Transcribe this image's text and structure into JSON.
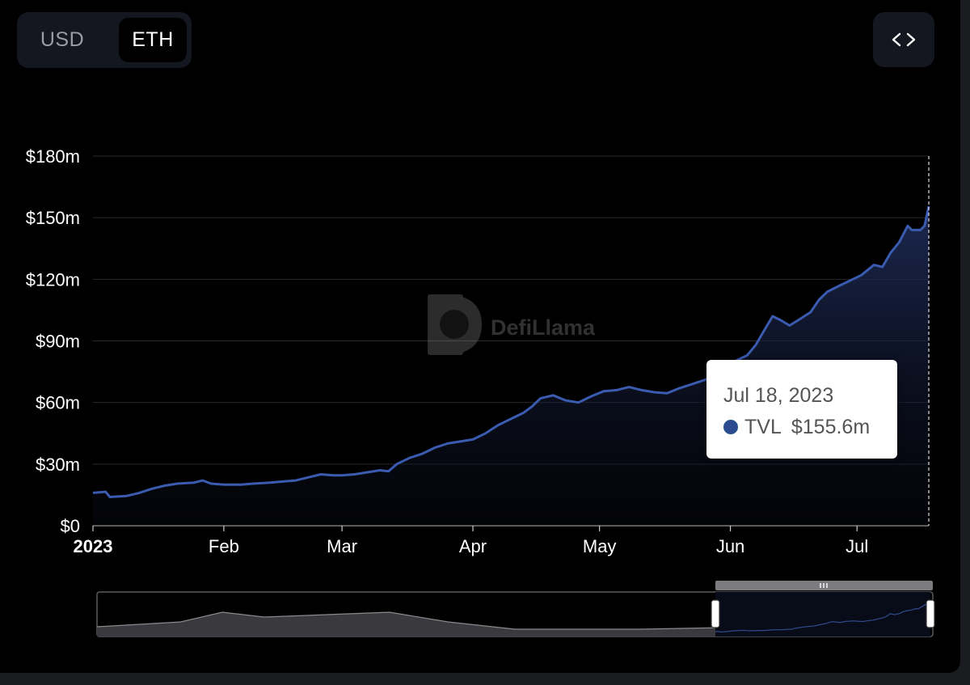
{
  "toggle": {
    "usd_label": "USD",
    "eth_label": "ETH",
    "selected": "ETH"
  },
  "embed_button": {
    "icon": "code-brackets-icon"
  },
  "watermark": {
    "text": "DefiLlama"
  },
  "tooltip": {
    "date": "Jul 18, 2023",
    "series": "TVL",
    "value": "$155.6m"
  },
  "colors": {
    "line": "#3a5bb0",
    "tooltip_dot": "#2c4a8e",
    "background": "#000000"
  },
  "chart_data": {
    "type": "area",
    "title": "",
    "xlabel": "",
    "ylabel": "",
    "ylim": [
      0,
      180
    ],
    "xlim": [
      "2023-01-01",
      "2023-07-18"
    ],
    "y_ticks": [
      {
        "value": 0,
        "label": "$0"
      },
      {
        "value": 30,
        "label": "$30m"
      },
      {
        "value": 60,
        "label": "$60m"
      },
      {
        "value": 90,
        "label": "$90m"
      },
      {
        "value": 120,
        "label": "$120m"
      },
      {
        "value": 150,
        "label": "$150m"
      },
      {
        "value": 180,
        "label": "$180m"
      }
    ],
    "x_ticks": [
      {
        "date": "2023-01-01",
        "label": "2023",
        "bold": true
      },
      {
        "date": "2023-02-01",
        "label": "Feb"
      },
      {
        "date": "2023-03-01",
        "label": "Mar"
      },
      {
        "date": "2023-04-01",
        "label": "Apr"
      },
      {
        "date": "2023-05-01",
        "label": "May"
      },
      {
        "date": "2023-06-01",
        "label": "Jun"
      },
      {
        "date": "2023-07-01",
        "label": "Jul"
      }
    ],
    "grid": true,
    "series": [
      {
        "name": "TVL",
        "unit": "$m",
        "points": [
          [
            "2023-01-01",
            16
          ],
          [
            "2023-01-04",
            16.5
          ],
          [
            "2023-01-05",
            14
          ],
          [
            "2023-01-09",
            14.5
          ],
          [
            "2023-01-12",
            16
          ],
          [
            "2023-01-15",
            18
          ],
          [
            "2023-01-18",
            19.5
          ],
          [
            "2023-01-21",
            20.5
          ],
          [
            "2023-01-25",
            21
          ],
          [
            "2023-01-27",
            22
          ],
          [
            "2023-01-29",
            20.5
          ],
          [
            "2023-02-01",
            20
          ],
          [
            "2023-02-05",
            20
          ],
          [
            "2023-02-08",
            20.5
          ],
          [
            "2023-02-12",
            21
          ],
          [
            "2023-02-15",
            21.5
          ],
          [
            "2023-02-18",
            22
          ],
          [
            "2023-02-21",
            23.5
          ],
          [
            "2023-02-24",
            25
          ],
          [
            "2023-02-27",
            24.5
          ],
          [
            "2023-03-01",
            24.5
          ],
          [
            "2023-03-04",
            25
          ],
          [
            "2023-03-07",
            26
          ],
          [
            "2023-03-10",
            27
          ],
          [
            "2023-03-12",
            26.5
          ],
          [
            "2023-03-14",
            30
          ],
          [
            "2023-03-17",
            33
          ],
          [
            "2023-03-20",
            35
          ],
          [
            "2023-03-23",
            38
          ],
          [
            "2023-03-26",
            40
          ],
          [
            "2023-03-29",
            41
          ],
          [
            "2023-04-01",
            42
          ],
          [
            "2023-04-04",
            45
          ],
          [
            "2023-04-07",
            49
          ],
          [
            "2023-04-10",
            52
          ],
          [
            "2023-04-13",
            55
          ],
          [
            "2023-04-15",
            58
          ],
          [
            "2023-04-17",
            62
          ],
          [
            "2023-04-20",
            63.5
          ],
          [
            "2023-04-23",
            61
          ],
          [
            "2023-04-26",
            60
          ],
          [
            "2023-04-29",
            63
          ],
          [
            "2023-05-02",
            65.5
          ],
          [
            "2023-05-05",
            66
          ],
          [
            "2023-05-08",
            67.5
          ],
          [
            "2023-05-11",
            66
          ],
          [
            "2023-05-14",
            65
          ],
          [
            "2023-05-17",
            64.5
          ],
          [
            "2023-05-20",
            67
          ],
          [
            "2023-05-23",
            69
          ],
          [
            "2023-05-26",
            71
          ],
          [
            "2023-05-29",
            74
          ],
          [
            "2023-06-01",
            79
          ],
          [
            "2023-06-03",
            81
          ],
          [
            "2023-06-05",
            83
          ],
          [
            "2023-06-07",
            88
          ],
          [
            "2023-06-09",
            95
          ],
          [
            "2023-06-11",
            102
          ],
          [
            "2023-06-13",
            100
          ],
          [
            "2023-06-15",
            97.5
          ],
          [
            "2023-06-17",
            100
          ],
          [
            "2023-06-20",
            104
          ],
          [
            "2023-06-22",
            110
          ],
          [
            "2023-06-24",
            114
          ],
          [
            "2023-06-27",
            117
          ],
          [
            "2023-06-30",
            120
          ],
          [
            "2023-07-02",
            122
          ],
          [
            "2023-07-05",
            127
          ],
          [
            "2023-07-07",
            126
          ],
          [
            "2023-07-09",
            133
          ],
          [
            "2023-07-11",
            138
          ],
          [
            "2023-07-13",
            146
          ],
          [
            "2023-07-14",
            144
          ],
          [
            "2023-07-16",
            144
          ],
          [
            "2023-07-17",
            146
          ],
          [
            "2023-07-18",
            155.6
          ]
        ]
      }
    ],
    "brush": {
      "range_start": "2023-01-01",
      "range_end": "2023-07-18",
      "selected_start": "2023-01-01",
      "selected_end": "2023-07-18",
      "overview_series_full": [
        [
          0.0,
          0.02
        ],
        [
          0.1,
          0.03
        ],
        [
          0.15,
          0.05
        ],
        [
          0.2,
          0.04
        ],
        [
          0.35,
          0.05
        ],
        [
          0.42,
          0.03
        ],
        [
          0.5,
          0.015
        ],
        [
          0.65,
          0.015
        ],
        [
          0.8,
          0.02
        ],
        [
          0.92,
          0.02
        ]
      ]
    }
  }
}
